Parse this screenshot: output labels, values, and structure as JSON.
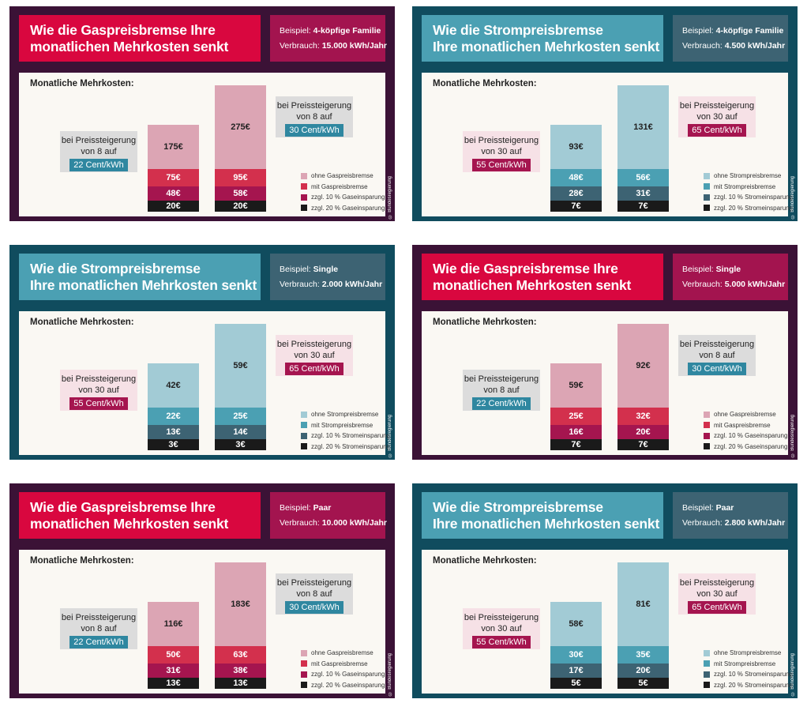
{
  "common": {
    "monthly_label": "Monatliche Mehrkosten:",
    "credit": "© Bundesregierung",
    "example_prefix": "Beispiel:",
    "consumption_prefix": "Verbrauch:",
    "callout_line1": "bei Preissteigerung"
  },
  "colors": {
    "gas": {
      "bg": "#3b1236",
      "segments": [
        "#dca5b4",
        "#d3304d",
        "#a5154f",
        "#1a1a1a"
      ],
      "text": [
        "dc",
        "lc",
        "lc",
        "lc"
      ]
    },
    "strom": {
      "bg": "#104c5e",
      "segments": [
        "#a2cbd5",
        "#4ba0b3",
        "#3d6373",
        "#1a1a1a"
      ],
      "text": [
        "dc",
        "lc",
        "lc",
        "lc"
      ]
    }
  },
  "panels": [
    {
      "kind": "gas",
      "title_lines": [
        "Wie die Gaspreisbremse Ihre",
        "monatlichen Mehrkosten senkt"
      ],
      "example": "4-köpfige Familie",
      "consumption": "15.000 kWh/Jahr",
      "legend": [
        "ohne Gaspreisbremse",
        "mit Gaspreisbremse",
        "zzgl. 10 % Gaseinsparung",
        "zzgl. 20 % Gaseinsparung"
      ],
      "callouts": [
        {
          "line2": "von 8 auf",
          "badge": "22 Cent/kWh"
        },
        {
          "line2": "von 8 auf",
          "badge": "30 Cent/kWh"
        }
      ]
    },
    {
      "kind": "strom",
      "title_lines": [
        "Wie die Strompreisbremse",
        "Ihre monatlichen Mehrkosten senkt"
      ],
      "example": "4-köpfige Familie",
      "consumption": "4.500 kWh/Jahr",
      "legend": [
        "ohne Strompreisbremse",
        "mit Strompreisbremse",
        "zzgl. 10 % Stromeinsparung",
        "zzgl. 20 % Stromeinsparung"
      ],
      "callouts": [
        {
          "line2": "von 30 auf",
          "badge": "55 Cent/kWh"
        },
        {
          "line2": "von 30 auf",
          "badge": "65 Cent/kWh"
        }
      ]
    },
    {
      "kind": "strom",
      "title_lines": [
        "Wie die Strompreisbremse",
        "Ihre monatlichen Mehrkosten senkt"
      ],
      "example": "Single",
      "consumption": "2.000 kWh/Jahr",
      "legend": [
        "ohne Strompreisbremse",
        "mit Strompreisbremse",
        "zzgl. 10 % Stromeinsparung",
        "zzgl. 20 % Stromeinsparung"
      ],
      "callouts": [
        {
          "line2": "von 30 auf",
          "badge": "55 Cent/kWh"
        },
        {
          "line2": "von 30 auf",
          "badge": "65 Cent/kWh"
        }
      ]
    },
    {
      "kind": "gas",
      "title_lines": [
        "Wie die Gaspreisbremse Ihre",
        "monatlichen Mehrkosten senkt"
      ],
      "example": "Single",
      "consumption": "5.000 kWh/Jahr",
      "legend": [
        "ohne Gaspreisbremse",
        "mit Gaspreisbremse",
        "zzgl. 10 % Gaseinsparung",
        "zzgl. 20 % Gaseinsparung"
      ],
      "callouts": [
        {
          "line2": "von 8 auf",
          "badge": "22 Cent/kWh"
        },
        {
          "line2": "von 8 auf",
          "badge": "30 Cent/kWh"
        }
      ]
    },
    {
      "kind": "gas",
      "title_lines": [
        "Wie die Gaspreisbremse Ihre",
        "monatlichen Mehrkosten senkt"
      ],
      "example": "Paar",
      "consumption": "10.000 kWh/Jahr",
      "legend": [
        "ohne Gaspreisbremse",
        "mit Gaspreisbremse",
        "zzgl. 10 % Gaseinsparung",
        "zzgl. 20 % Gaseinsparung"
      ],
      "callouts": [
        {
          "line2": "von 8 auf",
          "badge": "22 Cent/kWh"
        },
        {
          "line2": "von 8 auf",
          "badge": "30 Cent/kWh"
        }
      ]
    },
    {
      "kind": "strom",
      "title_lines": [
        "Wie die Strompreisbremse",
        "Ihre monatlichen Mehrkosten senkt"
      ],
      "example": "Paar",
      "consumption": "2.800 kWh/Jahr",
      "legend": [
        "ohne Strompreisbremse",
        "mit Strompreisbremse",
        "zzgl. 10 % Stromeinsparung",
        "zzgl. 20 % Stromeinsparung"
      ],
      "callouts": [
        {
          "line2": "von 30 auf",
          "badge": "55 Cent/kWh"
        },
        {
          "line2": "von 30 auf",
          "badge": "65 Cent/kWh"
        }
      ]
    }
  ],
  "chart_data": [
    {
      "type": "bar",
      "title": "Wie die Gaspreisbremse Ihre monatlichen Mehrkosten senkt",
      "categories": [
        "22 Cent/kWh",
        "30 Cent/kWh"
      ],
      "series": [
        {
          "name": "ohne Gaspreisbremse",
          "values": [
            175,
            275
          ]
        },
        {
          "name": "mit Gaspreisbremse",
          "values": [
            75,
            95
          ]
        },
        {
          "name": "zzgl. 10 % Gaseinsparung",
          "values": [
            48,
            58
          ]
        },
        {
          "name": "zzgl. 20 % Gaseinsparung",
          "values": [
            20,
            20
          ]
        }
      ],
      "labels": [
        [
          "175€",
          "75€",
          "48€",
          "20€"
        ],
        [
          "275€",
          "95€",
          "58€",
          "20€"
        ]
      ]
    },
    {
      "type": "bar",
      "title": "Wie die Strompreisbremse Ihre monatlichen Mehrkosten senkt",
      "categories": [
        "55 Cent/kWh",
        "65 Cent/kWh"
      ],
      "series": [
        {
          "name": "ohne Strompreisbremse",
          "values": [
            93,
            131
          ]
        },
        {
          "name": "mit Strompreisbremse",
          "values": [
            48,
            56
          ]
        },
        {
          "name": "zzgl. 10 % Stromeinsparung",
          "values": [
            28,
            31
          ]
        },
        {
          "name": "zzgl. 20 % Stromeinsparung",
          "values": [
            7,
            7
          ]
        }
      ],
      "labels": [
        [
          "93€",
          "48€",
          "28€",
          "7€"
        ],
        [
          "131€",
          "56€",
          "31€",
          "7€"
        ]
      ]
    },
    {
      "type": "bar",
      "title": "Wie die Strompreisbremse Ihre monatlichen Mehrkosten senkt",
      "categories": [
        "55 Cent/kWh",
        "65 Cent/kWh"
      ],
      "series": [
        {
          "name": "ohne Strompreisbremse",
          "values": [
            42,
            59
          ]
        },
        {
          "name": "mit Strompreisbremse",
          "values": [
            22,
            25
          ]
        },
        {
          "name": "zzgl. 10 % Stromeinsparung",
          "values": [
            13,
            14
          ]
        },
        {
          "name": "zzgl. 20 % Stromeinsparung",
          "values": [
            3,
            3
          ]
        }
      ],
      "labels": [
        [
          "42€",
          "22€",
          "13€",
          "3€"
        ],
        [
          "59€",
          "25€",
          "14€",
          "3€"
        ]
      ]
    },
    {
      "type": "bar",
      "title": "Wie die Gaspreisbremse Ihre monatlichen Mehrkosten senkt",
      "categories": [
        "22 Cent/kWh",
        "30 Cent/kWh"
      ],
      "series": [
        {
          "name": "ohne Gaspreisbremse",
          "values": [
            59,
            92
          ]
        },
        {
          "name": "mit Gaspreisbremse",
          "values": [
            25,
            32
          ]
        },
        {
          "name": "zzgl. 10 % Gaseinsparung",
          "values": [
            16,
            20
          ]
        },
        {
          "name": "zzgl. 20 % Gaseinsparung",
          "values": [
            7,
            7
          ]
        }
      ],
      "labels": [
        [
          "59€",
          "25€",
          "16€",
          "7€"
        ],
        [
          "92€",
          "32€",
          "20€",
          "7€"
        ]
      ]
    },
    {
      "type": "bar",
      "title": "Wie die Gaspreisbremse Ihre monatlichen Mehrkosten senkt",
      "categories": [
        "22 Cent/kWh",
        "30 Cent/kWh"
      ],
      "series": [
        {
          "name": "ohne Gaspreisbremse",
          "values": [
            116,
            183
          ]
        },
        {
          "name": "mit Gaspreisbremse",
          "values": [
            50,
            63
          ]
        },
        {
          "name": "zzgl. 10 % Gaseinsparung",
          "values": [
            31,
            38
          ]
        },
        {
          "name": "zzgl. 20 % Gaseinsparung",
          "values": [
            13,
            13
          ]
        }
      ],
      "labels": [
        [
          "116€",
          "50€",
          "31€",
          "13€"
        ],
        [
          "183€",
          "63€",
          "38€",
          "13€"
        ]
      ]
    },
    {
      "type": "bar",
      "title": "Wie die Strompreisbremse Ihre monatlichen Mehrkosten senkt",
      "categories": [
        "55 Cent/kWh",
        "65 Cent/kWh"
      ],
      "series": [
        {
          "name": "ohne Strompreisbremse",
          "values": [
            58,
            81
          ]
        },
        {
          "name": "mit Strompreisbremse",
          "values": [
            30,
            35
          ]
        },
        {
          "name": "zzgl. 10 % Stromeinsparung",
          "values": [
            17,
            20
          ]
        },
        {
          "name": "zzgl. 20 % Stromeinsparung",
          "values": [
            5,
            5
          ]
        }
      ],
      "labels": [
        [
          "58€",
          "30€",
          "17€",
          "5€"
        ],
        [
          "81€",
          "35€",
          "20€",
          "5€"
        ]
      ]
    }
  ]
}
